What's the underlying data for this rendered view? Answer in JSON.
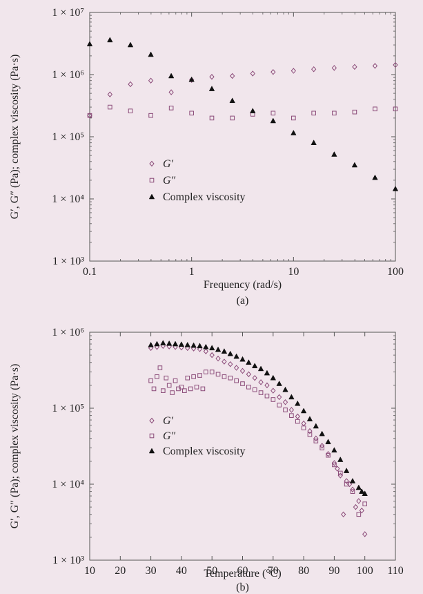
{
  "colors": {
    "background": "#f1e6ec",
    "g_prime": "#8a4a78",
    "g_double_prime": "#8a4a78",
    "complex_viscosity": "#111111"
  },
  "chart_data": [
    {
      "type": "scatter",
      "panel_label": "(a)",
      "xlabel": "Frequency  (rad/s)",
      "ylabel": "G′, G″ (Pa); complex viscosity  (Pa·s)",
      "xscale": "log",
      "yscale": "log",
      "xlim": [
        0.1,
        100
      ],
      "ylim": [
        1000,
        10000000
      ],
      "grid": false,
      "legend_position": "bottom-left",
      "xticks": [
        {
          "v": 0.1,
          "label": "0.1"
        },
        {
          "v": 1,
          "label": "1"
        },
        {
          "v": 10,
          "label": "10"
        },
        {
          "v": 100,
          "label": "100"
        }
      ],
      "yticks": [
        {
          "v": 1000,
          "label": "1 × 10³"
        },
        {
          "v": 10000,
          "label": "1 × 10⁴"
        },
        {
          "v": 100000,
          "label": "1 × 10⁵"
        },
        {
          "v": 1000000,
          "label": "1 × 10⁶"
        },
        {
          "v": 10000000,
          "label": "1 × 10⁷"
        }
      ],
      "series": [
        {
          "name": "G′",
          "marker": "diamond",
          "x": [
            0.1,
            0.158,
            0.251,
            0.398,
            0.631,
            1.0,
            1.58,
            2.51,
            3.98,
            6.31,
            10.0,
            15.8,
            25.1,
            39.8,
            63.1,
            100
          ],
          "y": [
            220000,
            480000,
            700000,
            800000,
            520000,
            820000,
            920000,
            950000,
            1040000,
            1100000,
            1150000,
            1220000,
            1280000,
            1330000,
            1380000,
            1430000
          ]
        },
        {
          "name": "G″",
          "marker": "square",
          "x": [
            0.1,
            0.158,
            0.251,
            0.398,
            0.631,
            1.0,
            1.58,
            2.51,
            3.98,
            6.31,
            10.0,
            15.8,
            25.1,
            39.8,
            63.1,
            100
          ],
          "y": [
            220000,
            300000,
            260000,
            220000,
            290000,
            240000,
            200000,
            200000,
            230000,
            240000,
            200000,
            240000,
            240000,
            250000,
            280000,
            280000
          ]
        },
        {
          "name": "Complex viscosity",
          "marker": "triangle",
          "x": [
            0.1,
            0.158,
            0.251,
            0.398,
            0.631,
            1.0,
            1.58,
            2.51,
            3.98,
            6.31,
            10.0,
            15.8,
            25.1,
            39.8,
            63.1,
            100
          ],
          "y": [
            3100000,
            3600000,
            3000000,
            2100000,
            950000,
            830000,
            590000,
            380000,
            260000,
            180000,
            115000,
            80000,
            52000,
            35000,
            22000,
            14500
          ]
        }
      ]
    },
    {
      "type": "scatter",
      "panel_label": "(b)",
      "xlabel": "Temperature  (°C)",
      "ylabel": "G′, G″ (Pa); complex viscosity  (Pa·s)",
      "xscale": "linear",
      "yscale": "log",
      "xlim": [
        10,
        110
      ],
      "ylim": [
        1000,
        1000000
      ],
      "grid": false,
      "legend_position": "bottom-left",
      "xticks": [
        {
          "v": 10,
          "label": "10"
        },
        {
          "v": 20,
          "label": "20"
        },
        {
          "v": 30,
          "label": "30"
        },
        {
          "v": 40,
          "label": "40"
        },
        {
          "v": 50,
          "label": "50"
        },
        {
          "v": 60,
          "label": "60"
        },
        {
          "v": 70,
          "label": "70"
        },
        {
          "v": 80,
          "label": "80"
        },
        {
          "v": 90,
          "label": "90"
        },
        {
          "v": 100,
          "label": "100"
        },
        {
          "v": 110,
          "label": "110"
        }
      ],
      "yticks": [
        {
          "v": 1000,
          "label": "1 × 10³"
        },
        {
          "v": 10000,
          "label": "1 × 10⁴"
        },
        {
          "v": 100000,
          "label": "1 × 10⁵"
        },
        {
          "v": 1000000,
          "label": "1 × 10⁶"
        }
      ],
      "series": [
        {
          "name": "G′",
          "marker": "diamond",
          "x": [
            30,
            32,
            34,
            36,
            38,
            40,
            42,
            44,
            46,
            48,
            50,
            52,
            54,
            56,
            58,
            60,
            62,
            64,
            66,
            68,
            70,
            72,
            74,
            76,
            78,
            80,
            82,
            84,
            86,
            88,
            90,
            91,
            92,
            93,
            94,
            95,
            96,
            97,
            98,
            99,
            100
          ],
          "y": [
            620000,
            640000,
            660000,
            650000,
            640000,
            630000,
            620000,
            610000,
            600000,
            560000,
            500000,
            450000,
            410000,
            380000,
            340000,
            310000,
            280000,
            250000,
            220000,
            200000,
            170000,
            140000,
            120000,
            95000,
            78000,
            63000,
            50000,
            40000,
            32000,
            25000,
            19000,
            16000,
            13000,
            4000,
            11000,
            10000,
            8500,
            5000,
            6000,
            4500,
            2200
          ]
        },
        {
          "name": "G″",
          "marker": "square",
          "x": [
            30,
            31,
            32,
            33,
            34,
            35,
            36,
            37,
            38,
            39,
            40,
            41,
            42,
            43,
            44,
            45,
            46,
            47,
            48,
            50,
            52,
            54,
            56,
            58,
            60,
            62,
            64,
            66,
            68,
            70,
            72,
            74,
            76,
            78,
            80,
            82,
            84,
            86,
            88,
            90,
            92,
            94,
            96,
            98,
            100
          ],
          "y": [
            230000,
            180000,
            260000,
            340000,
            170000,
            250000,
            200000,
            160000,
            230000,
            180000,
            190000,
            170000,
            250000,
            180000,
            260000,
            190000,
            270000,
            180000,
            300000,
            300000,
            280000,
            260000,
            250000,
            230000,
            210000,
            190000,
            175000,
            160000,
            145000,
            130000,
            110000,
            95000,
            80000,
            67000,
            55000,
            45000,
            37000,
            30000,
            24000,
            18000,
            14000,
            10000,
            8000,
            4000,
            5500
          ]
        },
        {
          "name": "Complex viscosity",
          "marker": "triangle",
          "x": [
            30,
            32,
            34,
            36,
            38,
            40,
            42,
            44,
            46,
            48,
            50,
            52,
            54,
            56,
            58,
            60,
            62,
            64,
            66,
            68,
            70,
            72,
            74,
            76,
            78,
            80,
            82,
            84,
            86,
            88,
            90,
            92,
            94,
            96,
            98,
            99,
            100
          ],
          "y": [
            680000,
            700000,
            720000,
            710000,
            700000,
            690000,
            680000,
            670000,
            660000,
            640000,
            620000,
            590000,
            560000,
            520000,
            480000,
            440000,
            400000,
            360000,
            330000,
            290000,
            250000,
            210000,
            175000,
            140000,
            115000,
            92000,
            72000,
            58000,
            46000,
            36000,
            28000,
            21000,
            15000,
            11000,
            9000,
            8000,
            7500
          ]
        }
      ]
    }
  ]
}
